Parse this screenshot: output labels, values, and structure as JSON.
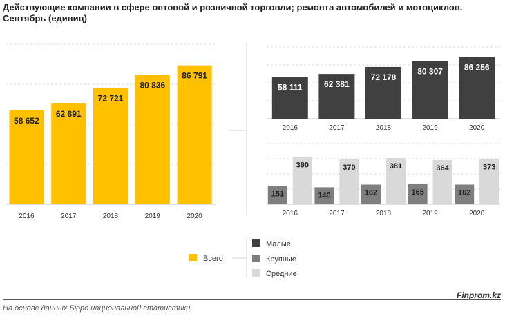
{
  "title": {
    "line1": "Действующие компании в сфере оптовой и розничной торговли; ремонта автомобилей и мотоциклов.",
    "line2": "Сентябрь (единиц)"
  },
  "colors": {
    "total": "#FFC000",
    "small": "#404040",
    "large": "#7F7F7F",
    "medium": "#D9D9D9",
    "grid": "#D9D9D9"
  },
  "chart_data": [
    {
      "type": "bar",
      "categories": [
        "2016",
        "2017",
        "2018",
        "2019",
        "2020"
      ],
      "series": [
        {
          "name": "Всего",
          "values": [
            58652,
            62891,
            72721,
            80836,
            86791
          ]
        }
      ],
      "labels": [
        "58 652",
        "62 891",
        "72 721",
        "80 836",
        "86 791"
      ],
      "ylim": [
        0,
        100000
      ],
      "grid": true
    },
    {
      "type": "bar",
      "categories": [
        "2016",
        "2017",
        "2018",
        "2019",
        "2020"
      ],
      "series": [
        {
          "name": "Малые",
          "values": [
            58111,
            62381,
            72178,
            80307,
            86256
          ]
        }
      ],
      "labels": [
        "58 111",
        "62 381",
        "72 178",
        "80 307",
        "86 256"
      ],
      "ylim": [
        0,
        100000
      ],
      "grid": true
    },
    {
      "type": "bar",
      "categories": [
        "2016",
        "2017",
        "2018",
        "2019",
        "2020"
      ],
      "series": [
        {
          "name": "Крупные",
          "values": [
            151,
            140,
            162,
            165,
            162
          ]
        },
        {
          "name": "Средние",
          "values": [
            390,
            370,
            381,
            364,
            373
          ]
        }
      ],
      "ylim": [
        0,
        500
      ],
      "grid": true
    }
  ],
  "legend": {
    "total": "Всего",
    "small": "Малые",
    "large": "Крупные",
    "medium": "Средние"
  },
  "footer": {
    "source": "На основе данных Бюро национальной статистики",
    "brand": "Finprom.kz"
  }
}
